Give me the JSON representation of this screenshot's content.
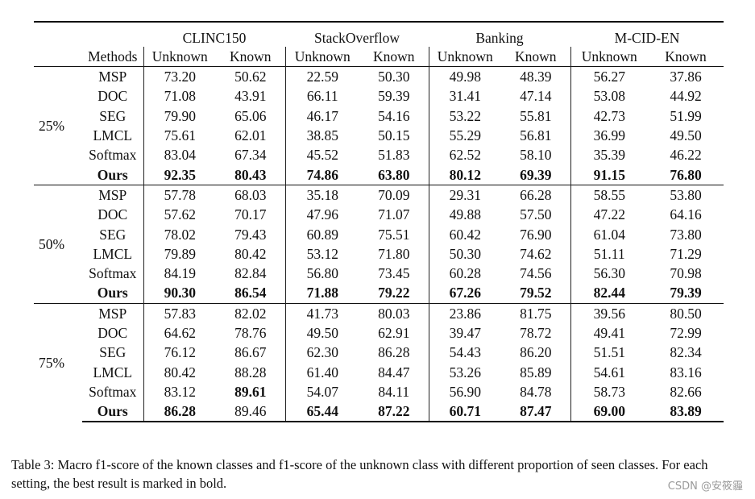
{
  "table": {
    "datasets": [
      "CLINC150",
      "StackOverflow",
      "Banking",
      "M-CID-EN"
    ],
    "methods_header": "Methods",
    "unknown_label": "Unknown",
    "known_label": "Known",
    "groups": [
      {
        "label": "25%",
        "rows": [
          {
            "method": "MSP",
            "values": [
              "73.20",
              "50.62",
              "22.59",
              "50.30",
              "49.98",
              "48.39",
              "56.27",
              "37.86"
            ]
          },
          {
            "method": "DOC",
            "values": [
              "71.08",
              "43.91",
              "66.11",
              "59.39",
              "31.41",
              "47.14",
              "53.08",
              "44.92"
            ]
          },
          {
            "method": "SEG",
            "values": [
              "79.90",
              "65.06",
              "46.17",
              "54.16",
              "53.22",
              "55.81",
              "42.73",
              "51.99"
            ]
          },
          {
            "method": "LMCL",
            "values": [
              "75.61",
              "62.01",
              "38.85",
              "50.15",
              "55.29",
              "56.81",
              "36.99",
              "49.50"
            ]
          },
          {
            "method": "Softmax",
            "values": [
              "83.04",
              "67.34",
              "45.52",
              "51.83",
              "62.52",
              "58.10",
              "35.39",
              "46.22"
            ]
          },
          {
            "method": "Ours",
            "values": [
              "92.35",
              "80.43",
              "74.86",
              "63.80",
              "80.12",
              "69.39",
              "91.15",
              "76.80"
            ]
          }
        ]
      },
      {
        "label": "50%",
        "rows": [
          {
            "method": "MSP",
            "values": [
              "57.78",
              "68.03",
              "35.18",
              "70.09",
              "29.31",
              "66.28",
              "58.55",
              "53.80"
            ]
          },
          {
            "method": "DOC",
            "values": [
              "57.62",
              "70.17",
              "47.96",
              "71.07",
              "49.88",
              "57.50",
              "47.22",
              "64.16"
            ]
          },
          {
            "method": "SEG",
            "values": [
              "78.02",
              "79.43",
              "60.89",
              "75.51",
              "60.42",
              "76.90",
              "61.04",
              "73.80"
            ]
          },
          {
            "method": "LMCL",
            "values": [
              "79.89",
              "80.42",
              "53.12",
              "71.80",
              "50.30",
              "74.62",
              "51.11",
              "71.29"
            ]
          },
          {
            "method": "Softmax",
            "values": [
              "84.19",
              "82.84",
              "56.80",
              "73.45",
              "60.28",
              "74.56",
              "56.30",
              "70.98"
            ]
          },
          {
            "method": "Ours",
            "values": [
              "90.30",
              "86.54",
              "71.88",
              "79.22",
              "67.26",
              "79.52",
              "82.44",
              "79.39"
            ]
          }
        ]
      },
      {
        "label": "75%",
        "rows": [
          {
            "method": "MSP",
            "values": [
              "57.83",
              "82.02",
              "41.73",
              "80.03",
              "23.86",
              "81.75",
              "39.56",
              "80.50"
            ]
          },
          {
            "method": "DOC",
            "values": [
              "64.62",
              "78.76",
              "49.50",
              "62.91",
              "39.47",
              "78.72",
              "49.41",
              "72.99"
            ]
          },
          {
            "method": "SEG",
            "values": [
              "76.12",
              "86.67",
              "62.30",
              "86.28",
              "54.43",
              "86.20",
              "51.51",
              "82.34"
            ]
          },
          {
            "method": "LMCL",
            "values": [
              "80.42",
              "88.28",
              "61.40",
              "84.47",
              "53.26",
              "85.89",
              "54.61",
              "83.16"
            ]
          },
          {
            "method": "Softmax",
            "values": [
              "83.12",
              "89.61",
              "54.07",
              "84.11",
              "56.90",
              "84.78",
              "58.73",
              "82.66"
            ]
          },
          {
            "method": "Ours",
            "values": [
              "86.28",
              "89.46",
              "65.44",
              "87.22",
              "60.71",
              "87.47",
              "69.00",
              "83.89"
            ]
          }
        ]
      }
    ]
  },
  "caption": "Table 3:  Macro f1-score of the known classes and f1-score of the unknown class with different proportion of seen classes. For each setting, the best result is marked in bold.",
  "watermark": "CSDN @安筱霾"
}
